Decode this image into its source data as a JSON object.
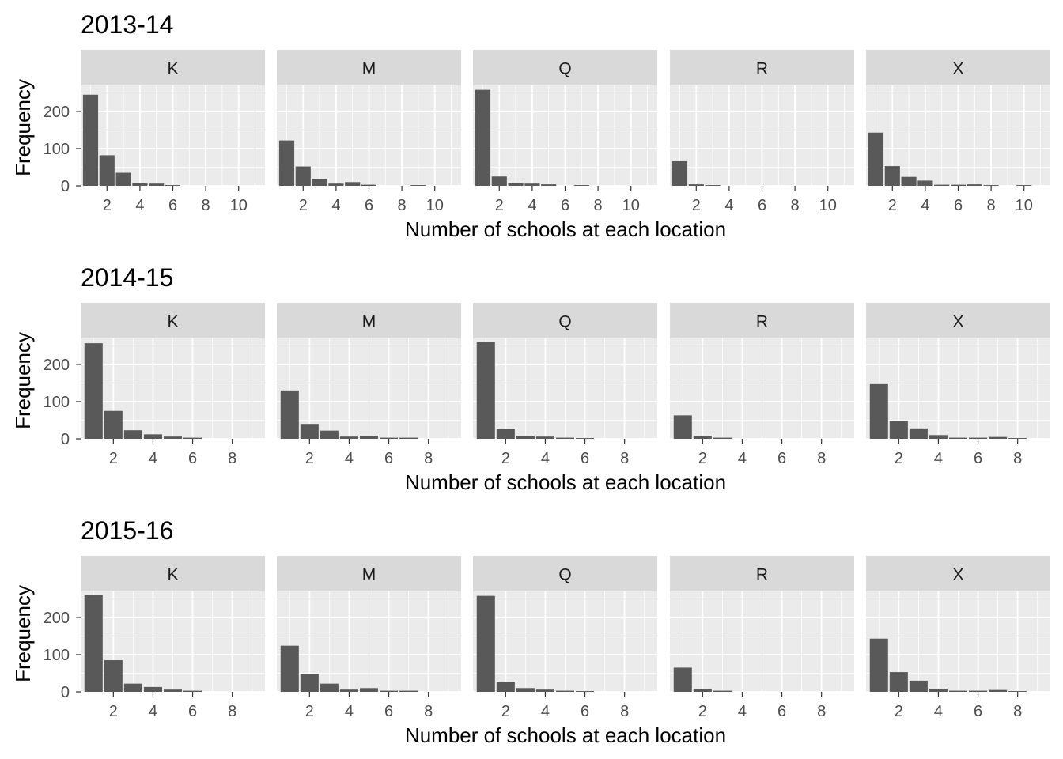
{
  "chart_data": [
    {
      "type": "bar",
      "title": "2013-14",
      "xlabel": "Number of schools at each location",
      "ylabel": "Frequency",
      "xlim": [
        0.4,
        11.6
      ],
      "ylim": [
        0,
        270
      ],
      "xticks": [
        2,
        4,
        6,
        8,
        10
      ],
      "yticks": [
        0,
        100,
        200
      ],
      "panels": [
        {
          "label": "K",
          "x": [
            1,
            2,
            3,
            4,
            5,
            6
          ],
          "values": [
            245,
            82,
            35,
            7,
            6,
            2
          ]
        },
        {
          "label": "M",
          "x": [
            1,
            2,
            3,
            4,
            5,
            6,
            9
          ],
          "values": [
            122,
            52,
            17,
            6,
            10,
            3,
            2
          ]
        },
        {
          "label": "Q",
          "x": [
            1,
            2,
            3,
            4,
            5,
            7
          ],
          "values": [
            258,
            25,
            8,
            6,
            4,
            2
          ]
        },
        {
          "label": "R",
          "x": [
            1,
            2,
            3
          ],
          "values": [
            66,
            4,
            2
          ]
        },
        {
          "label": "X",
          "x": [
            1,
            2,
            3,
            4,
            5,
            6,
            7,
            8,
            10
          ],
          "values": [
            143,
            53,
            24,
            14,
            3,
            3,
            4,
            2,
            2
          ]
        }
      ]
    },
    {
      "type": "bar",
      "title": "2014-15",
      "xlabel": "Number of schools at each location",
      "ylabel": "Frequency",
      "xlim": [
        0.35,
        9.65
      ],
      "ylim": [
        0,
        270
      ],
      "xticks": [
        2,
        4,
        6,
        8
      ],
      "yticks": [
        0,
        100,
        200
      ],
      "panels": [
        {
          "label": "K",
          "x": [
            1,
            2,
            3,
            4,
            5,
            6
          ],
          "values": [
            257,
            75,
            23,
            12,
            6,
            3
          ]
        },
        {
          "label": "M",
          "x": [
            1,
            2,
            3,
            4,
            5,
            6,
            7
          ],
          "values": [
            130,
            40,
            22,
            6,
            8,
            3,
            3
          ]
        },
        {
          "label": "Q",
          "x": [
            1,
            2,
            3,
            4,
            5,
            6
          ],
          "values": [
            260,
            26,
            8,
            6,
            3,
            2
          ]
        },
        {
          "label": "R",
          "x": [
            1,
            2,
            3
          ],
          "values": [
            63,
            8,
            3
          ]
        },
        {
          "label": "X",
          "x": [
            1,
            2,
            3,
            4,
            5,
            6,
            7,
            8
          ],
          "values": [
            147,
            48,
            28,
            10,
            3,
            3,
            5,
            2
          ]
        }
      ]
    },
    {
      "type": "bar",
      "title": "2015-16",
      "xlabel": "Number of schools at each location",
      "ylabel": "Frequency",
      "xlim": [
        0.35,
        9.65
      ],
      "ylim": [
        0,
        270
      ],
      "xticks": [
        2,
        4,
        6,
        8
      ],
      "yticks": [
        0,
        100,
        200
      ],
      "panels": [
        {
          "label": "K",
          "x": [
            1,
            2,
            3,
            4,
            5,
            6
          ],
          "values": [
            260,
            85,
            22,
            13,
            6,
            3
          ]
        },
        {
          "label": "M",
          "x": [
            1,
            2,
            3,
            4,
            5,
            6,
            7
          ],
          "values": [
            124,
            48,
            22,
            6,
            10,
            3,
            3
          ]
        },
        {
          "label": "Q",
          "x": [
            1,
            2,
            3,
            4,
            5,
            6
          ],
          "values": [
            258,
            26,
            10,
            6,
            3,
            2
          ]
        },
        {
          "label": "R",
          "x": [
            1,
            2,
            3
          ],
          "values": [
            65,
            7,
            3
          ]
        },
        {
          "label": "X",
          "x": [
            1,
            2,
            3,
            4,
            5,
            6,
            7,
            8
          ],
          "values": [
            143,
            53,
            30,
            8,
            3,
            3,
            5,
            2
          ]
        }
      ]
    }
  ],
  "colors": {
    "panel_background": "#ebebeb",
    "strip_background": "#d9d9d9",
    "gridline": "#ffffff",
    "bar_fill": "#595959",
    "tick_text": "#4d4d4d",
    "strip_text": "#1a1a1a"
  }
}
